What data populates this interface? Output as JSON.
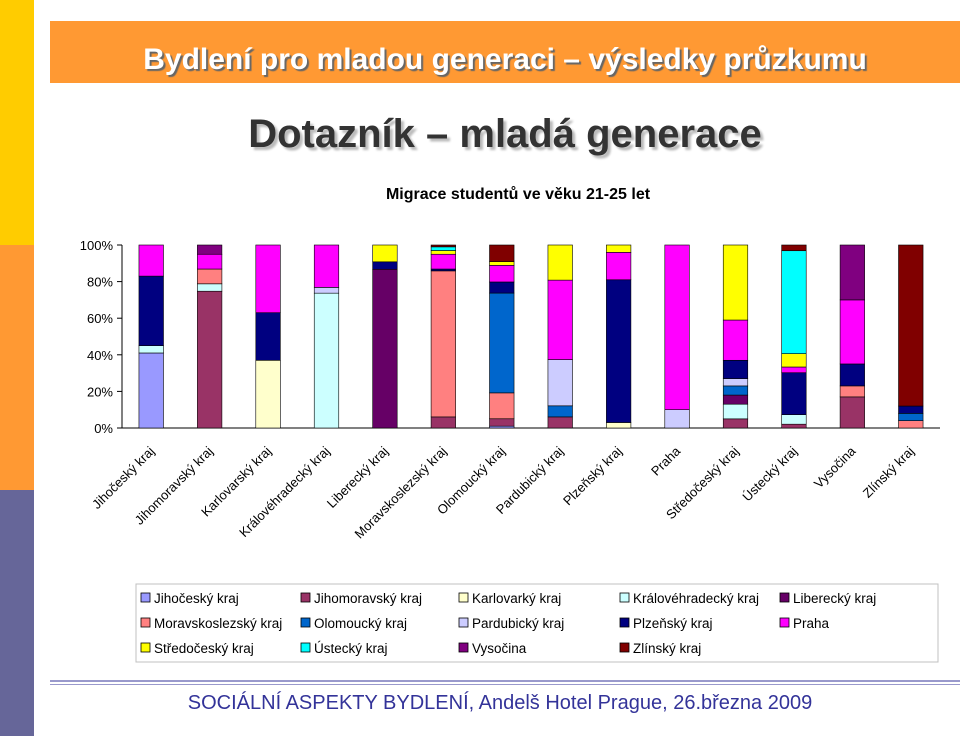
{
  "header": {
    "title": "Bydlení pro mladou generaci – výsledky průzkumu",
    "subtitle": "Dotazník – mladá generace"
  },
  "footer": {
    "text": "SOCIÁLNÍ ASPEKTY BYDLENÍ, Andelš Hotel Prague, 26.března 2009"
  },
  "colors": {
    "strip_top": "#FFCC00",
    "strip_mid": "#FF9933",
    "strip_bottom": "#666699",
    "title_bar": "#FF9933"
  },
  "chart_data": {
    "type": "bar",
    "stacked": true,
    "title": "Migrace studentů ve věku 21-25 let",
    "ytick_labels": [
      "0%",
      "20%",
      "40%",
      "60%",
      "80%",
      "100%"
    ],
    "ylim": [
      0,
      100
    ],
    "categories": [
      "Jihočeský kraj",
      "Jihomoravský kraj",
      "Karlovarský kraj",
      "Královéhradecký kraj",
      "Liberecký kraj",
      "Moravskoslezský kraj",
      "Olomoucký kraj",
      "Pardubický kraj",
      "Plzeňský kraj",
      "Praha",
      "Středočeský kraj",
      "Ústecký kraj",
      "Vysočina",
      "Zlínský kraj"
    ],
    "legend_position": "bottom",
    "series": [
      {
        "name": "Jihočeský kraj",
        "color": "#9999FF",
        "values": [
          41,
          0,
          0,
          0,
          0,
          0,
          1,
          0,
          0,
          0,
          0,
          0,
          0,
          0
        ]
      },
      {
        "name": "Jihomoravský kraj",
        "color": "#993366",
        "values": [
          0,
          74,
          0,
          0,
          0,
          6,
          4,
          6,
          0,
          0,
          5,
          2,
          17,
          0
        ]
      },
      {
        "name": "Karlovarký kraj",
        "color": "#FFFFCC",
        "values": [
          0,
          0,
          37,
          0,
          0,
          0,
          0,
          0,
          3,
          0,
          0,
          0,
          0,
          0
        ]
      },
      {
        "name": "Královéhradecký kraj",
        "color": "#CCFFFF",
        "values": [
          4,
          4,
          0,
          70,
          0,
          0,
          0,
          0,
          0,
          0,
          8,
          5,
          0,
          0
        ]
      },
      {
        "name": "Liberecký kraj",
        "color": "#660066",
        "values": [
          0,
          0,
          0,
          0,
          85,
          0,
          0,
          0,
          0,
          0,
          5,
          0,
          0,
          0
        ]
      },
      {
        "name": "Moravskoslezský kraj",
        "color": "#FF8080",
        "values": [
          0,
          8,
          0,
          0,
          0,
          79,
          14,
          0,
          0,
          0,
          0,
          0,
          6,
          4
        ]
      },
      {
        "name": "Olomoucký kraj",
        "color": "#0066CC",
        "values": [
          0,
          0,
          0,
          0,
          0,
          0,
          54,
          6,
          0,
          0,
          5,
          0,
          0,
          4
        ]
      },
      {
        "name": "Pardubický kraj",
        "color": "#CCCCFF",
        "values": [
          0,
          0,
          0,
          3,
          0,
          0,
          0,
          25,
          0,
          10,
          4,
          0,
          0,
          0
        ]
      },
      {
        "name": "Plzeňský kraj",
        "color": "#000080",
        "values": [
          38,
          0,
          26,
          0,
          4,
          1,
          6,
          0,
          78,
          0,
          10,
          22,
          12,
          4
        ]
      },
      {
        "name": "Praha",
        "color": "#FF00FF",
        "values": [
          17,
          8,
          37,
          22,
          0,
          8,
          9,
          43,
          15,
          90,
          22,
          3,
          35,
          0
        ]
      },
      {
        "name": "Středočeský kraj",
        "color": "#FFFF00",
        "values": [
          0,
          0,
          0,
          0,
          9,
          2,
          2,
          19,
          4,
          0,
          41,
          7,
          0,
          0
        ]
      },
      {
        "name": "Ústecký kraj",
        "color": "#00FFFF",
        "values": [
          0,
          0,
          0,
          0,
          0,
          2,
          0,
          0,
          0,
          0,
          0,
          54,
          0,
          0
        ]
      },
      {
        "name": "Vysočina",
        "color": "#800080",
        "values": [
          0,
          5,
          0,
          0,
          0,
          0,
          0,
          0,
          0,
          0,
          0,
          0,
          30,
          0
        ]
      },
      {
        "name": "Zlínský kraj",
        "color": "#800000",
        "values": [
          0,
          0,
          0,
          0,
          0,
          1,
          9,
          0,
          0,
          0,
          0,
          3,
          0,
          88
        ]
      }
    ]
  }
}
